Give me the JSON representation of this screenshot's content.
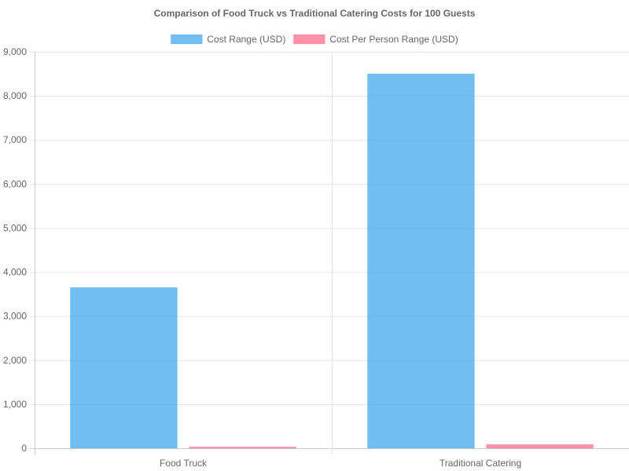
{
  "chart_data": {
    "type": "bar",
    "title": "Comparison of Food Truck vs Traditional Catering Costs for 100 Guests",
    "categories": [
      "Food Truck",
      "Traditional Catering"
    ],
    "series": [
      {
        "name": "Cost Range (USD)",
        "values": [
          3650,
          8500
        ],
        "color": "#36A2EB"
      },
      {
        "name": "Cost Per Person Range (USD)",
        "values": [
          30,
          85
        ],
        "color": "#FF6384"
      }
    ],
    "ylim": [
      0,
      9000
    ],
    "yticks": [
      0,
      1000,
      2000,
      3000,
      4000,
      5000,
      6000,
      7000,
      8000,
      9000
    ],
    "ytick_labels": [
      "0",
      "1,000",
      "2,000",
      "3,000",
      "4,000",
      "5,000",
      "6,000",
      "7,000",
      "8,000",
      "9,000"
    ],
    "legend_position": "top",
    "grid": true,
    "colors": {
      "grid": "#e5e5e5",
      "axis": "#cccccc",
      "text": "#666666"
    }
  }
}
